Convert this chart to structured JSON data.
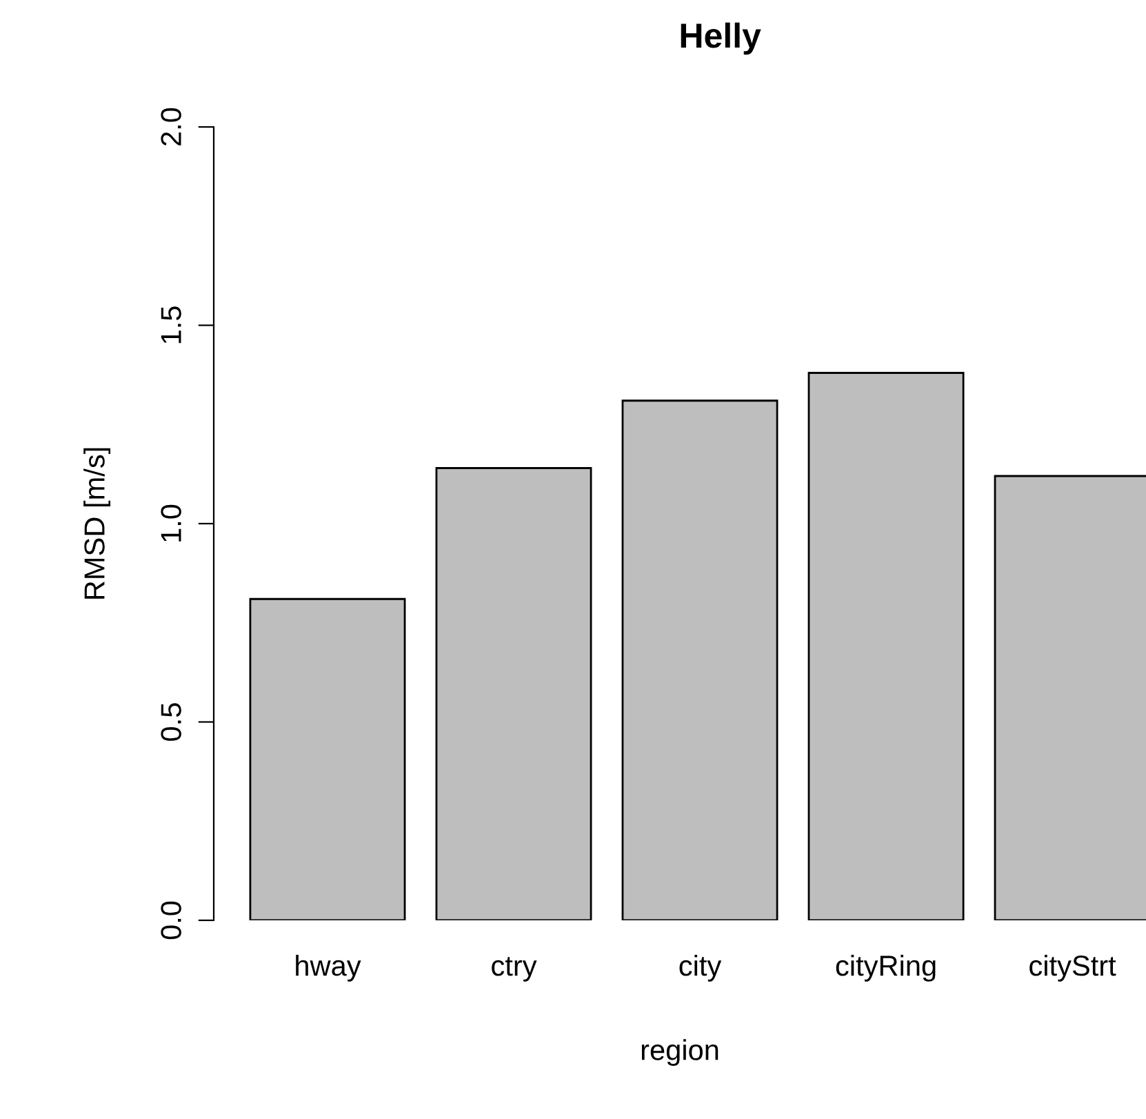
{
  "chart_data": {
    "type": "bar",
    "title": "Helly",
    "xlabel": "region",
    "ylabel": "RMSD [m/s]",
    "categories": [
      "hway",
      "ctry",
      "city",
      "cityRing",
      "cityStrt"
    ],
    "values": [
      0.81,
      1.14,
      1.31,
      1.38,
      1.12
    ],
    "color": "#bebebe",
    "ylim": [
      0,
      2
    ],
    "yticks": [
      {
        "value": 0,
        "label": "0.0"
      },
      {
        "value": 0.5,
        "label": "0.5"
      },
      {
        "value": 1,
        "label": "1.0"
      },
      {
        "value": 1.5,
        "label": "1.5"
      },
      {
        "value": 2,
        "label": "2.0"
      }
    ],
    "grid": false
  }
}
